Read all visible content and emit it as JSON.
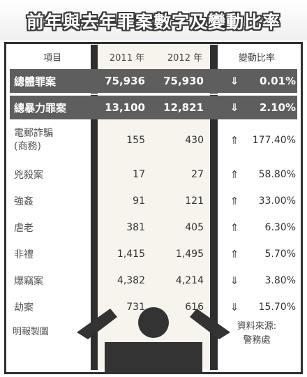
{
  "title": "前年與去年罪案數字及變動比率",
  "headers": {
    "item": "項目",
    "y2011": "2011 年",
    "y2012": "2012 年",
    "change": "變動比率"
  },
  "rows": [
    {
      "label": "總體罪案",
      "v2011": "75,936",
      "v2012": "75,930",
      "direction": "down",
      "arrow": "⇓",
      "pct": "0.01%"
    },
    {
      "label": "總暴力罪案",
      "v2011": "13,100",
      "v2012": "12,821",
      "direction": "down",
      "arrow": "⇓",
      "pct": "2.10%"
    },
    {
      "label_line1": "電郵詐騙",
      "label_line2": "(商務)",
      "v2011": "155",
      "v2012": "430",
      "direction": "up",
      "arrow": "⇑",
      "pct": "177.40%"
    },
    {
      "label": "兇殺案",
      "v2011": "17",
      "v2012": "27",
      "direction": "up",
      "arrow": "⇑",
      "pct": "58.80%"
    },
    {
      "label": "強姦",
      "v2011": "91",
      "v2012": "121",
      "direction": "up",
      "arrow": "⇑",
      "pct": "33.00%"
    },
    {
      "label": "虐老",
      "v2011": "381",
      "v2012": "405",
      "direction": "up",
      "arrow": "⇑",
      "pct": "6.30%"
    },
    {
      "label": "非禮",
      "v2011": "1,415",
      "v2012": "1,495",
      "direction": "up",
      "arrow": "⇑",
      "pct": "5.70%"
    },
    {
      "label": "爆竊案",
      "v2011": "4,382",
      "v2012": "4,214",
      "direction": "down",
      "arrow": "⇓",
      "pct": "3.80%"
    },
    {
      "label": "劫案",
      "v2011": "731",
      "v2012": "616",
      "direction": "down",
      "arrow": "⇓",
      "pct": "15.70%"
    }
  ],
  "credit": "明報製圖",
  "source_line1": "資料來源:",
  "source_line2": "警務處",
  "colors": {
    "dark_bar": "#2f2f2f",
    "highlight_row": "#5e5e5e",
    "mid_panel": "#f6f4ec"
  },
  "icons": {
    "up": "up-double-arrow-icon",
    "down": "down-double-arrow-icon",
    "figure": "podium-figure-icon"
  }
}
